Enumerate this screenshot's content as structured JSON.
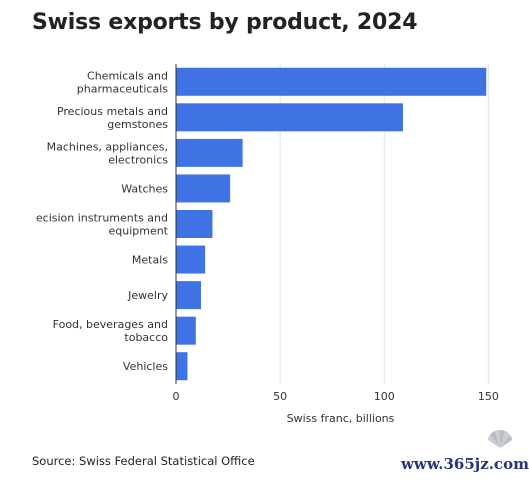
{
  "title": "Swiss exports by product, 2024",
  "source": "Source: Swiss Federal Statistical Office",
  "watermark": "www.365jz.com",
  "colors": {
    "bar": "#3f72e3",
    "gridline": "#e3e3e3",
    "axis_line": "#333333",
    "text": "#222222"
  },
  "chart_data": {
    "type": "bar",
    "orientation": "horizontal",
    "categories": [
      [
        "Chemicals and",
        "pharmaceuticals"
      ],
      [
        "Precious metals and",
        "gemstones"
      ],
      [
        "Machines, appliances,",
        "electronics"
      ],
      [
        "Watches"
      ],
      [
        "ecision instruments and",
        "equipment"
      ],
      [
        "Metals"
      ],
      [
        "Jewelry"
      ],
      [
        "Food, beverages and",
        "tobacco"
      ],
      [
        "Vehicles"
      ]
    ],
    "values": [
      149,
      109,
      32,
      26,
      17.5,
      14,
      12,
      9.5,
      5.5
    ],
    "xlabel": "Swiss franc, billions",
    "ylabel": "",
    "xlim": [
      0,
      158
    ],
    "xticks": [
      0,
      50,
      100,
      150
    ],
    "grid": true
  }
}
